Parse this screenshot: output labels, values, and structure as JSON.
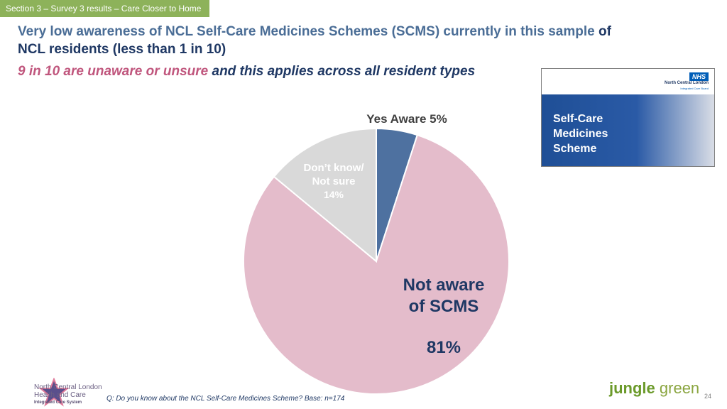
{
  "header": {
    "section_tag": "Section 3 – Survey 3 results – Care Closer to Home",
    "title_part1": "Very low awareness of NCL Self-Care Medicines Schemes (SCMS) currently in this sample",
    "title_part2": " of",
    "title_part3": "NCL residents (less than 1 in 10)",
    "subtitle_pink": "9 in 10 are unaware or unsure",
    "subtitle_rest": " and this applies across all resident types"
  },
  "scheme_image": {
    "nhs_badge": "NHS",
    "nhs_org": "North Central London",
    "nhs_sub": "Integrated Care Board",
    "panel_text": "Self-Care\nMedicines\nScheme"
  },
  "chart_data": {
    "type": "pie",
    "slices": [
      {
        "label": "Yes Aware 5%",
        "value": 5,
        "color": "#4e71a0"
      },
      {
        "label": "Not aware of SCMS 81%",
        "value": 81,
        "color": "#e4bccb"
      },
      {
        "label": "Don't know/ Not sure 14%",
        "value": 14,
        "color": "#d9d9d9"
      }
    ],
    "labels": {
      "yes_aware": "Yes Aware 5%",
      "not_aware_1": "Not aware",
      "not_aware_2": "of SCMS",
      "not_aware_pct": "81%",
      "dont_know_1": "Don’t know/",
      "dont_know_2": "Not sure",
      "dont_know_pct": "14%"
    }
  },
  "footer": {
    "question": "Q: Do you know about the NCL Self-Care Medicines Scheme?  Base: n=174",
    "ncl_line1": "North Central London",
    "ncl_line2": "Health and Care",
    "ncl_line3": "Integrated Care System",
    "jungle_green_1": "jungle",
    "jungle_green_2": " green",
    "page_number": "24"
  }
}
